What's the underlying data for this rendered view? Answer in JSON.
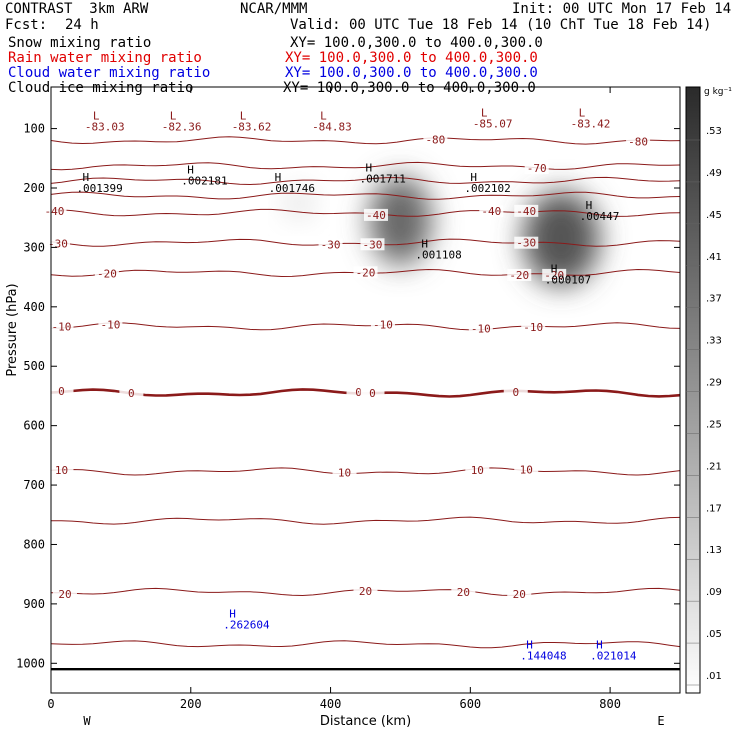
{
  "header": {
    "model": "CONTRAST  3km ARW",
    "center": "NCAR/MMM",
    "init": "Init: 00 UTC Mon 17 Feb 14",
    "fcst_label": "Fcst:",
    "fcst_value": "24 h",
    "valid": "Valid: 00 UTC Tue 18 Feb 14 (10 ChT Tue 18 Feb 14)",
    "fields": [
      {
        "name": "Snow mixing ratio",
        "xy": "XY= 100.0,300.0 to 400.0,300.0",
        "color": "#000000"
      },
      {
        "name": "Rain water mixing ratio",
        "xy": "XY= 100.0,300.0 to 400.0,300.0",
        "color": "#e00000"
      },
      {
        "name": "Cloud water mixing ratio",
        "xy": "XY= 100.0,300.0 to 400.0,300.0",
        "color": "#0000e0"
      },
      {
        "name": "Cloud ice mixing ratio",
        "xy": "XY= 100.0,300.0 to 400.0,300.0",
        "color": "#000000"
      }
    ]
  },
  "chart_data": {
    "type": "cross-section",
    "xlabel": "Distance (km)",
    "ylabel": "Pressure (hPa)",
    "xlim": [
      0,
      900
    ],
    "ylim": [
      1050,
      30
    ],
    "x_ticks": [
      0,
      200,
      400,
      600,
      800
    ],
    "y_ticks": [
      100,
      200,
      300,
      400,
      500,
      600,
      700,
      800,
      900,
      1000
    ],
    "endpoints": {
      "left": "W",
      "right": "E"
    },
    "colorbar": {
      "unit": "g kg⁻¹",
      "ticks": [
        ".53",
        ".49",
        ".45",
        ".41",
        ".37",
        ".33",
        ".29",
        ".25",
        ".21",
        ".17",
        ".13",
        ".09",
        ".05",
        ".01"
      ]
    },
    "temperature_contours": [
      {
        "value": -80,
        "pressure": 120,
        "labels": [
          {
            "x": 550,
            "text": "-80"
          },
          {
            "x": 840,
            "text": "-80"
          }
        ]
      },
      {
        "value": -70,
        "pressure": 163,
        "labels": [
          {
            "x": 695,
            "text": "-70"
          }
        ]
      },
      {
        "value": -60,
        "pressure": 188,
        "labels": []
      },
      {
        "value": -50,
        "pressure": 213,
        "labels": []
      },
      {
        "value": -40,
        "pressure": 242,
        "labels": [
          {
            "x": 5,
            "text": "-40"
          },
          {
            "x": 465,
            "text": "-40"
          },
          {
            "x": 630,
            "text": "-40"
          },
          {
            "x": 680,
            "text": "-40"
          }
        ]
      },
      {
        "value": -30,
        "pressure": 292,
        "labels": [
          {
            "x": 10,
            "text": "-30"
          },
          {
            "x": 400,
            "text": "-30"
          },
          {
            "x": 460,
            "text": "-30"
          },
          {
            "x": 680,
            "text": "-30"
          }
        ]
      },
      {
        "value": -20,
        "pressure": 343,
        "labels": [
          {
            "x": 80,
            "text": "-20"
          },
          {
            "x": 450,
            "text": "-20"
          },
          {
            "x": 670,
            "text": "-20"
          },
          {
            "x": 720,
            "text": "-20"
          }
        ]
      },
      {
        "value": -10,
        "pressure": 433,
        "labels": [
          {
            "x": 15,
            "text": "-10"
          },
          {
            "x": 85,
            "text": "-10"
          },
          {
            "x": 475,
            "text": "-10"
          },
          {
            "x": 615,
            "text": "-10"
          },
          {
            "x": 690,
            "text": "-10"
          }
        ]
      },
      {
        "value": 0,
        "pressure": 545,
        "labels": [
          {
            "x": 15,
            "text": "0"
          },
          {
            "x": 115,
            "text": "0"
          },
          {
            "x": 440,
            "text": "0"
          },
          {
            "x": 460,
            "text": "0"
          },
          {
            "x": 665,
            "text": "0"
          }
        ]
      },
      {
        "value": 10,
        "pressure": 677,
        "labels": [
          {
            "x": 15,
            "text": "10"
          },
          {
            "x": 420,
            "text": "10"
          },
          {
            "x": 610,
            "text": "10"
          },
          {
            "x": 680,
            "text": "10"
          }
        ]
      },
      {
        "value": 15,
        "pressure": 760,
        "labels": []
      },
      {
        "value": 20,
        "pressure": 880,
        "labels": [
          {
            "x": 20,
            "text": "20"
          },
          {
            "x": 450,
            "text": "20"
          },
          {
            "x": 590,
            "text": "20"
          },
          {
            "x": 670,
            "text": "20"
          }
        ]
      },
      {
        "value": 25,
        "pressure": 968,
        "labels": []
      }
    ],
    "extrema": [
      {
        "type": "L",
        "x": 60,
        "p": 85,
        "value": "-83.03",
        "color": "#8b1a1a"
      },
      {
        "type": "L",
        "x": 170,
        "p": 85,
        "value": "-82.36",
        "color": "#8b1a1a"
      },
      {
        "type": "L",
        "x": 270,
        "p": 85,
        "value": "-83.62",
        "color": "#8b1a1a"
      },
      {
        "type": "L",
        "x": 385,
        "p": 85,
        "value": "-84.83",
        "color": "#8b1a1a"
      },
      {
        "type": "L",
        "x": 615,
        "p": 80,
        "value": "-85.07",
        "color": "#8b1a1a"
      },
      {
        "type": "L",
        "x": 755,
        "p": 80,
        "value": "-83.42",
        "color": "#8b1a1a"
      },
      {
        "type": "H",
        "x": 45,
        "p": 188,
        "value": ".001399",
        "color": "#000000"
      },
      {
        "type": "H",
        "x": 195,
        "p": 176,
        "value": ".002181",
        "color": "#000000"
      },
      {
        "type": "H",
        "x": 320,
        "p": 188,
        "value": ".001746",
        "color": "#000000"
      },
      {
        "type": "H",
        "x": 450,
        "p": 172,
        "value": ".001711",
        "color": "#000000"
      },
      {
        "type": "H",
        "x": 600,
        "p": 188,
        "value": ".002102",
        "color": "#000000"
      },
      {
        "type": "H",
        "x": 765,
        "p": 235,
        "value": ".00447",
        "color": "#000000"
      },
      {
        "type": "H",
        "x": 530,
        "p": 300,
        "value": ".001108",
        "color": "#000000"
      },
      {
        "type": "H",
        "x": 715,
        "p": 342,
        "value": ".000107",
        "color": "#000000"
      },
      {
        "type": "H",
        "x": 255,
        "p": 923,
        "value": ".262604",
        "color": "#0000e0"
      },
      {
        "type": "H",
        "x": 680,
        "p": 975,
        "value": ".144048",
        "color": "#0000e0"
      },
      {
        "type": "H",
        "x": 780,
        "p": 975,
        "value": ".021014",
        "color": "#0000e0"
      }
    ],
    "shading_blobs": [
      {
        "x": 500,
        "p": 255,
        "rx": 45,
        "rp": 75,
        "intensity": 0.75
      },
      {
        "x": 730,
        "p": 285,
        "rx": 55,
        "rp": 80,
        "intensity": 0.85
      },
      {
        "x": 355,
        "p": 225,
        "rx": 20,
        "rp": 25,
        "intensity": 0.15
      }
    ],
    "series": [
      {
        "name": "Snow mixing ratio"
      },
      {
        "name": "Rain water mixing ratio"
      },
      {
        "name": "Cloud water mixing ratio"
      },
      {
        "name": "Cloud ice mixing ratio"
      }
    ]
  }
}
